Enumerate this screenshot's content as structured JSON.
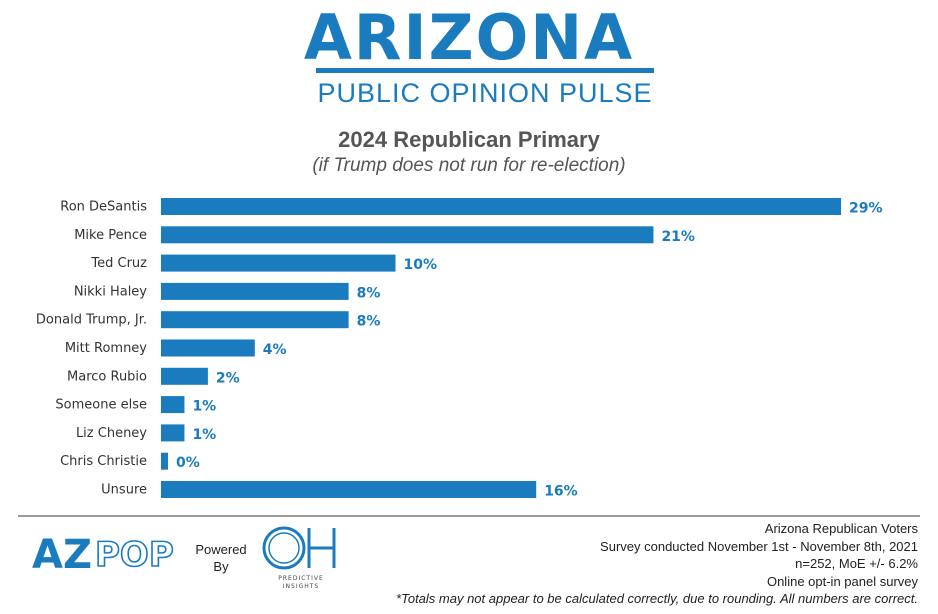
{
  "header": {
    "logo_title": "Arizona",
    "logo_subtitle": "PUBLIC OPINION PULSE"
  },
  "chart_data": {
    "type": "bar",
    "orientation": "horizontal",
    "title": "2024 Republican Primary",
    "subtitle": "(if Trump does not run for re-election)",
    "categories": [
      "Ron DeSantis",
      "Mike Pence",
      "Ted Cruz",
      "Nikki Haley",
      "Donald Trump, Jr.",
      "Mitt Romney",
      "Marco Rubio",
      "Someone else",
      "Liz Cheney",
      "Chris Christie",
      "Unsure"
    ],
    "values": [
      29,
      21,
      10,
      8,
      8,
      4,
      2,
      1,
      1,
      0,
      16
    ],
    "value_labels": [
      "29%",
      "21%",
      "10%",
      "8%",
      "8%",
      "4%",
      "2%",
      "1%",
      "1%",
      "0%",
      "16%"
    ],
    "unit": "%",
    "bar_color": "#1a7bbf",
    "grid": false,
    "legend": "none"
  },
  "footer": {
    "azpop_logo": "AZPOP",
    "powered_by_line1": "Powered",
    "powered_by_line2": "By",
    "oh_logo": "OH",
    "oh_logo_caption": "PREDICTIVE INSIGHTS",
    "info_lines": [
      "Arizona Republican Voters",
      "Survey conducted November 1st - November 8th, 2021",
      "n=252, MoE +/- 6.2%",
      "Online opt-in panel survey"
    ],
    "note": "*Totals may not appear to be calculated correctly, due to rounding. All numbers are correct."
  },
  "colors": {
    "brand": "#1a7bbf",
    "title_gray": "#555555"
  }
}
